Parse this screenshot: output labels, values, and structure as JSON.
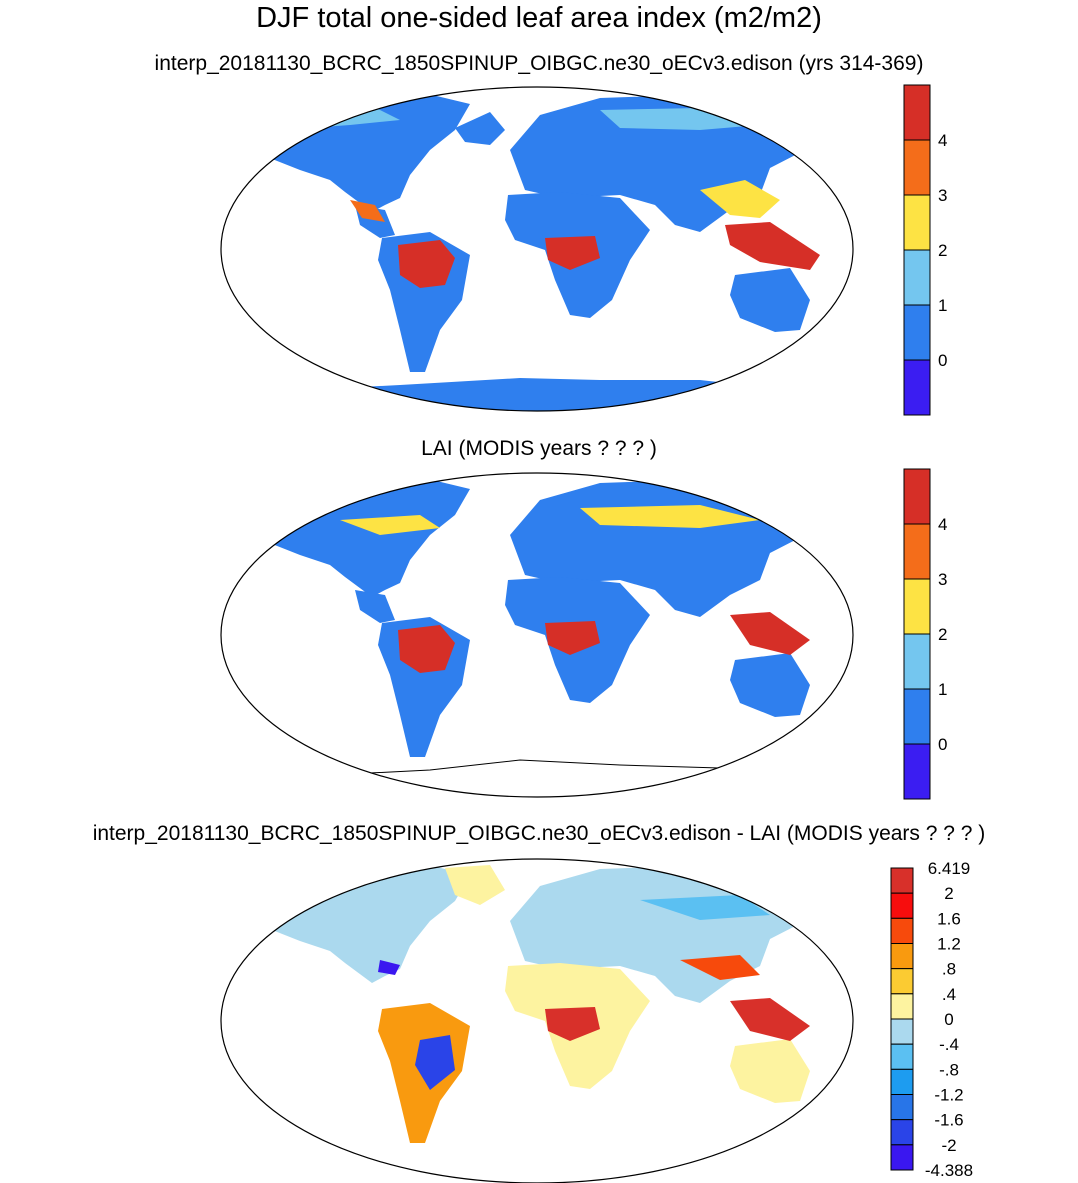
{
  "title": "DJF total one-sided leaf area index (m2/m2)",
  "panels": [
    {
      "subtitle": "interp_20181130_BCRC_1850SPINUP_OIBGC.ne30_oECv3.edison (yrs 314-369)",
      "colorbar": {
        "labels": [
          "4",
          "3",
          "2",
          "1",
          "0"
        ],
        "colors": [
          "#d62f27",
          "#f46d1a",
          "#fde344",
          "#74c6ef",
          "#2f7fee",
          "#3b1df2"
        ]
      }
    },
    {
      "subtitle": "LAI (MODIS years ? ? ? )",
      "colorbar": {
        "labels": [
          "4",
          "3",
          "2",
          "1",
          "0"
        ],
        "colors": [
          "#d62f27",
          "#f46d1a",
          "#fde344",
          "#74c6ef",
          "#2f7fee",
          "#3b1df2"
        ]
      }
    },
    {
      "subtitle": "interp_20181130_BCRC_1850SPINUP_OIBGC.ne30_oECv3.edison - LAI (MODIS years ? ? ? )",
      "colorbar": {
        "labels": [
          "6.419",
          "2",
          "1.6",
          "1.2",
          ".8",
          ".4",
          "0",
          "-.4",
          "-.8",
          "-1.2",
          "-1.6",
          "-2",
          "-4.388"
        ],
        "colors": [
          "#d8302a",
          "#f70d0d",
          "#f74a0c",
          "#f99a0f",
          "#fbcb32",
          "#fdf3a0",
          "#abd9ee",
          "#5bc0f2",
          "#1d9cf0",
          "#2875e8",
          "#2a44e8",
          "#3a17f0"
        ]
      }
    }
  ]
}
